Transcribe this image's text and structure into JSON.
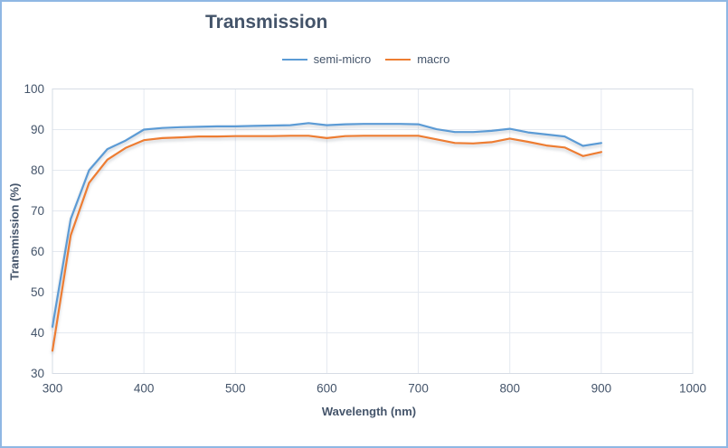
{
  "window": {
    "background": "#FFFFFF",
    "border_color": "#8FB7E4"
  },
  "chart_data": {
    "type": "line",
    "title": "Transmission",
    "xlabel": "Wavelength (nm)",
    "ylabel": "Transmission (%)",
    "xlim": [
      300,
      1000
    ],
    "ylim": [
      30,
      100
    ],
    "x_ticks": [
      300,
      400,
      500,
      600,
      700,
      800,
      900,
      1000
    ],
    "y_ticks": [
      30,
      40,
      50,
      60,
      70,
      80,
      90,
      100
    ],
    "grid": true,
    "legend_position": "top-center",
    "text_color": "#44546A",
    "grid_color": "#E4E9F0",
    "plot_border_color": "#D6DCE5",
    "x": [
      300,
      320,
      340,
      360,
      380,
      400,
      420,
      440,
      460,
      480,
      500,
      520,
      540,
      560,
      580,
      600,
      620,
      640,
      660,
      680,
      700,
      720,
      740,
      760,
      780,
      800,
      820,
      840,
      860,
      880,
      900
    ],
    "series": [
      {
        "name": "semi-micro",
        "color": "#5B9BD5",
        "values": [
          41.5,
          68,
          80,
          85.2,
          87.3,
          90,
          90.4,
          90.6,
          90.7,
          90.8,
          90.8,
          90.9,
          91,
          91.1,
          91.6,
          91.1,
          91.3,
          91.4,
          91.4,
          91.4,
          91.3,
          90.1,
          89.4,
          89.4,
          89.7,
          90.2,
          89.3,
          88.8,
          88.3,
          86,
          86.7
        ]
      },
      {
        "name": "macro",
        "color": "#ED7D31",
        "values": [
          35.6,
          64,
          76.9,
          82.6,
          85.5,
          87.4,
          87.9,
          88.1,
          88.3,
          88.3,
          88.4,
          88.4,
          88.4,
          88.5,
          88.5,
          87.9,
          88.4,
          88.5,
          88.5,
          88.5,
          88.5,
          87.6,
          86.7,
          86.6,
          86.9,
          87.8,
          87,
          86.1,
          85.6,
          83.5,
          84.5
        ]
      }
    ]
  }
}
